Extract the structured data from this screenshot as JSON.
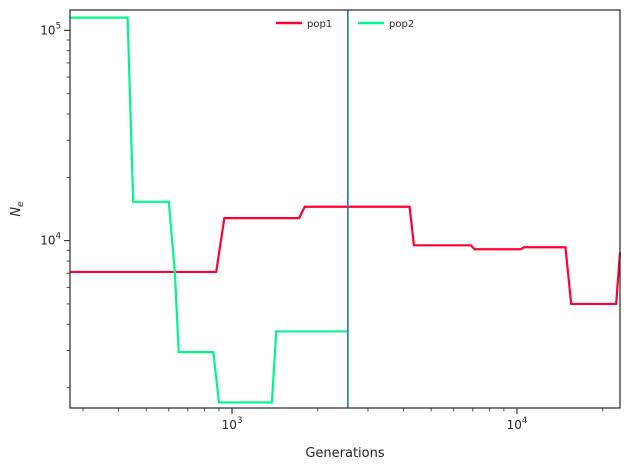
{
  "chart_data": {
    "type": "line",
    "title": "",
    "xlabel": "Generations",
    "ylabel_main": "N",
    "ylabel_sub": "e",
    "x_scale": "log",
    "y_scale": "log",
    "xlim": [
      270,
      23000
    ],
    "ylim": [
      1600,
      125000
    ],
    "x_ticks": [
      {
        "value": 1000,
        "base": "10",
        "exp": "3"
      },
      {
        "value": 10000,
        "base": "10",
        "exp": "4"
      }
    ],
    "y_ticks": [
      {
        "value": 10000,
        "base": "10",
        "exp": "4"
      },
      {
        "value": 100000,
        "base": "10",
        "exp": "5"
      }
    ],
    "vline": {
      "x": 2550,
      "color": "#1f77b4"
    },
    "legend": {
      "placement": "top-center",
      "orientation": "horizontal"
    },
    "series": [
      {
        "name": "pop1",
        "color": "#ff0033",
        "points": [
          [
            270,
            7100
          ],
          [
            880,
            7100
          ],
          [
            940,
            12800
          ],
          [
            1720,
            12800
          ],
          [
            1800,
            14500
          ],
          [
            4200,
            14500
          ],
          [
            4350,
            9500
          ],
          [
            6900,
            9500
          ],
          [
            7100,
            9100
          ],
          [
            10300,
            9100
          ],
          [
            10600,
            9300
          ],
          [
            14800,
            9300
          ],
          [
            15500,
            5000
          ],
          [
            22300,
            5000
          ],
          [
            23000,
            8800
          ]
        ]
      },
      {
        "name": "pop2",
        "color": "#00f58c",
        "points": [
          [
            270,
            115000
          ],
          [
            430,
            115000
          ],
          [
            450,
            15300
          ],
          [
            600,
            15300
          ],
          [
            630,
            7100
          ],
          [
            650,
            2950
          ],
          [
            860,
            2950
          ],
          [
            900,
            1700
          ],
          [
            1380,
            1700
          ],
          [
            1430,
            3700
          ],
          [
            2550,
            3700
          ]
        ]
      }
    ]
  }
}
